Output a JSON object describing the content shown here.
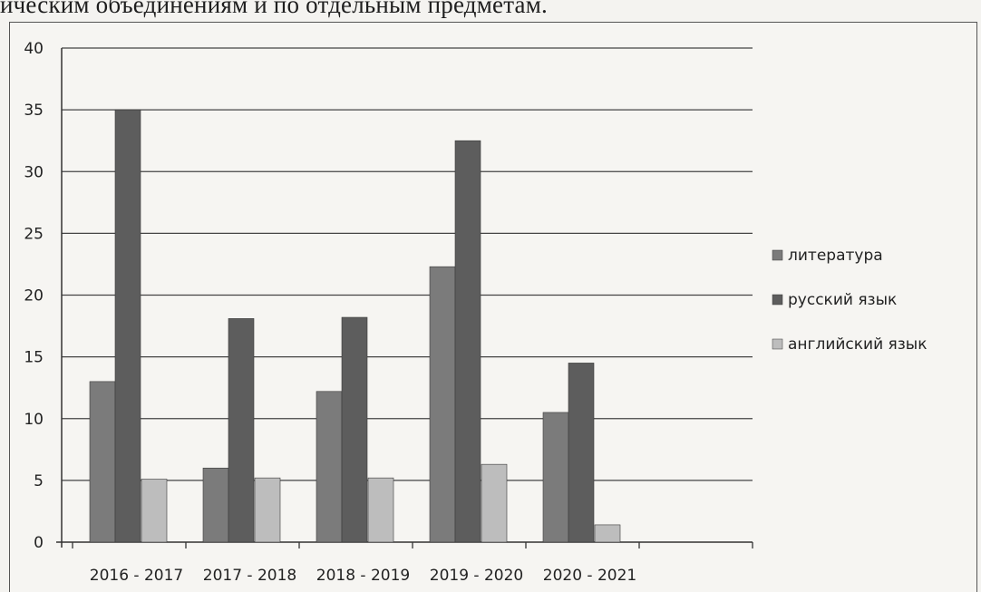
{
  "heading_fragment": "ическим объединениям и по отдельным предметам.",
  "chart_data": {
    "type": "bar",
    "categories": [
      "2016 - 2017",
      "2017 - 2018",
      "2018 - 2019",
      "2019 - 2020",
      "2020 - 2021"
    ],
    "series": [
      {
        "name": "литература",
        "values": [
          13,
          6,
          12.2,
          22.3,
          10.5
        ],
        "color": "#7b7b7b"
      },
      {
        "name": "русский язык",
        "values": [
          35,
          18.1,
          18.2,
          32.5,
          14.5
        ],
        "color": "#5d5d5d"
      },
      {
        "name": "английский язык",
        "values": [
          5.1,
          5.2,
          5.2,
          6.3,
          1.4
        ],
        "color": "#bdbdbd"
      }
    ],
    "ylim": [
      0,
      40
    ],
    "yticks": [
      "0",
      "5",
      "10",
      "15",
      "20",
      "25",
      "30",
      "35",
      "40"
    ],
    "grid": true,
    "legend_position": "right",
    "title": "",
    "xlabel": "",
    "ylabel": ""
  }
}
